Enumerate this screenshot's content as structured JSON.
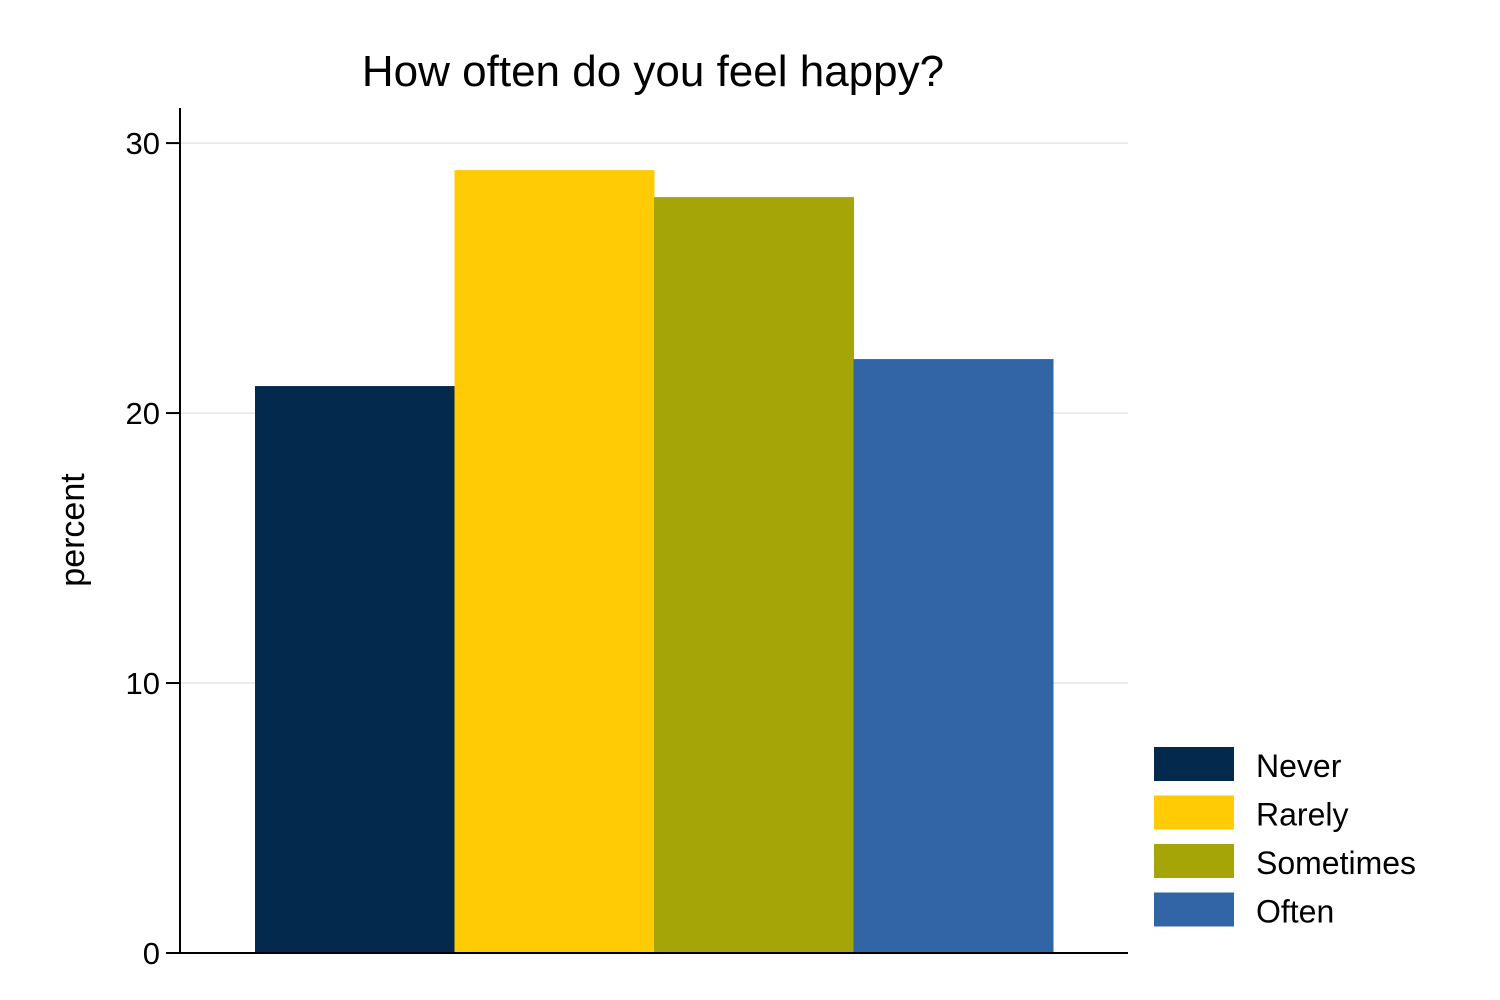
{
  "chart_data": {
    "type": "bar",
    "title": "How often do you feel happy?",
    "xlabel": "",
    "ylabel": "percent",
    "ylim": [
      0,
      31.3
    ],
    "yticks": [
      0,
      10,
      20,
      30
    ],
    "grid": true,
    "legend_position": "bottom-right",
    "categories": [
      "Never",
      "Rarely",
      "Sometimes",
      "Often"
    ],
    "values": [
      21,
      29,
      28,
      22
    ],
    "colors": [
      "#03294c",
      "#ffcb05",
      "#a6a508",
      "#3165a6"
    ]
  }
}
